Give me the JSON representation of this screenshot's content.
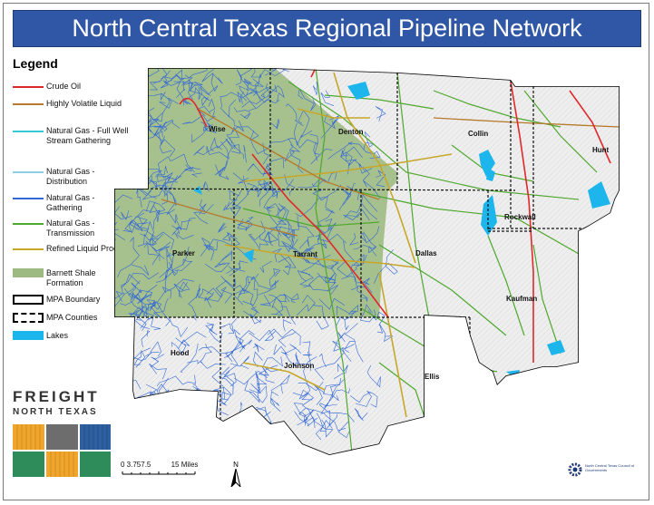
{
  "title": "North Central Texas Regional Pipeline Network",
  "legend": {
    "heading": "Legend",
    "items": [
      {
        "label": "Crude Oil",
        "color": "#e0282b",
        "kind": "line"
      },
      {
        "label": "Highly Volatile Liquid",
        "color": "#b7792c",
        "kind": "line"
      },
      {
        "label": "Natural Gas - Full Well Stream Gathering",
        "color": "#35c9d6",
        "kind": "line"
      },
      {
        "label": "Natural Gas - Distribution",
        "color": "#8fcde6",
        "kind": "line"
      },
      {
        "label": "Natural Gas - Gathering",
        "color": "#3267d6",
        "kind": "line"
      },
      {
        "label": "Natural Gas - Transmission",
        "color": "#4fa82e",
        "kind": "line"
      },
      {
        "label": "Refined Liquid Product",
        "color": "#c6a72a",
        "kind": "line"
      },
      {
        "label": "Barnett Shale Formation",
        "color": "#9dba83",
        "kind": "fill"
      },
      {
        "label": "MPA Boundary",
        "color": "#000000",
        "kind": "box-solid"
      },
      {
        "label": "MPA Counties",
        "color": "#000000",
        "kind": "box-dashed"
      },
      {
        "label": "Lakes",
        "color": "#1cb5ec",
        "kind": "fill"
      }
    ]
  },
  "counties": [
    "Wise",
    "Denton",
    "Collin",
    "Hunt",
    "Parker",
    "Tarrant",
    "Dallas",
    "Rockwall",
    "Kaufman",
    "Hood",
    "Johnson",
    "Ellis"
  ],
  "logo": {
    "line1": "FREIGHT",
    "line2": "NORTH TEXAS",
    "colors": [
      "#f1a62b",
      "#2e8c5a",
      "#2e5fa0",
      "#6d6d6d"
    ]
  },
  "scale_bar": {
    "ticks": "0 3.757.5",
    "end": "15 Miles"
  },
  "north_arrow": {
    "label": "N"
  },
  "agency": {
    "name": "North Central Texas Council of Governments"
  }
}
